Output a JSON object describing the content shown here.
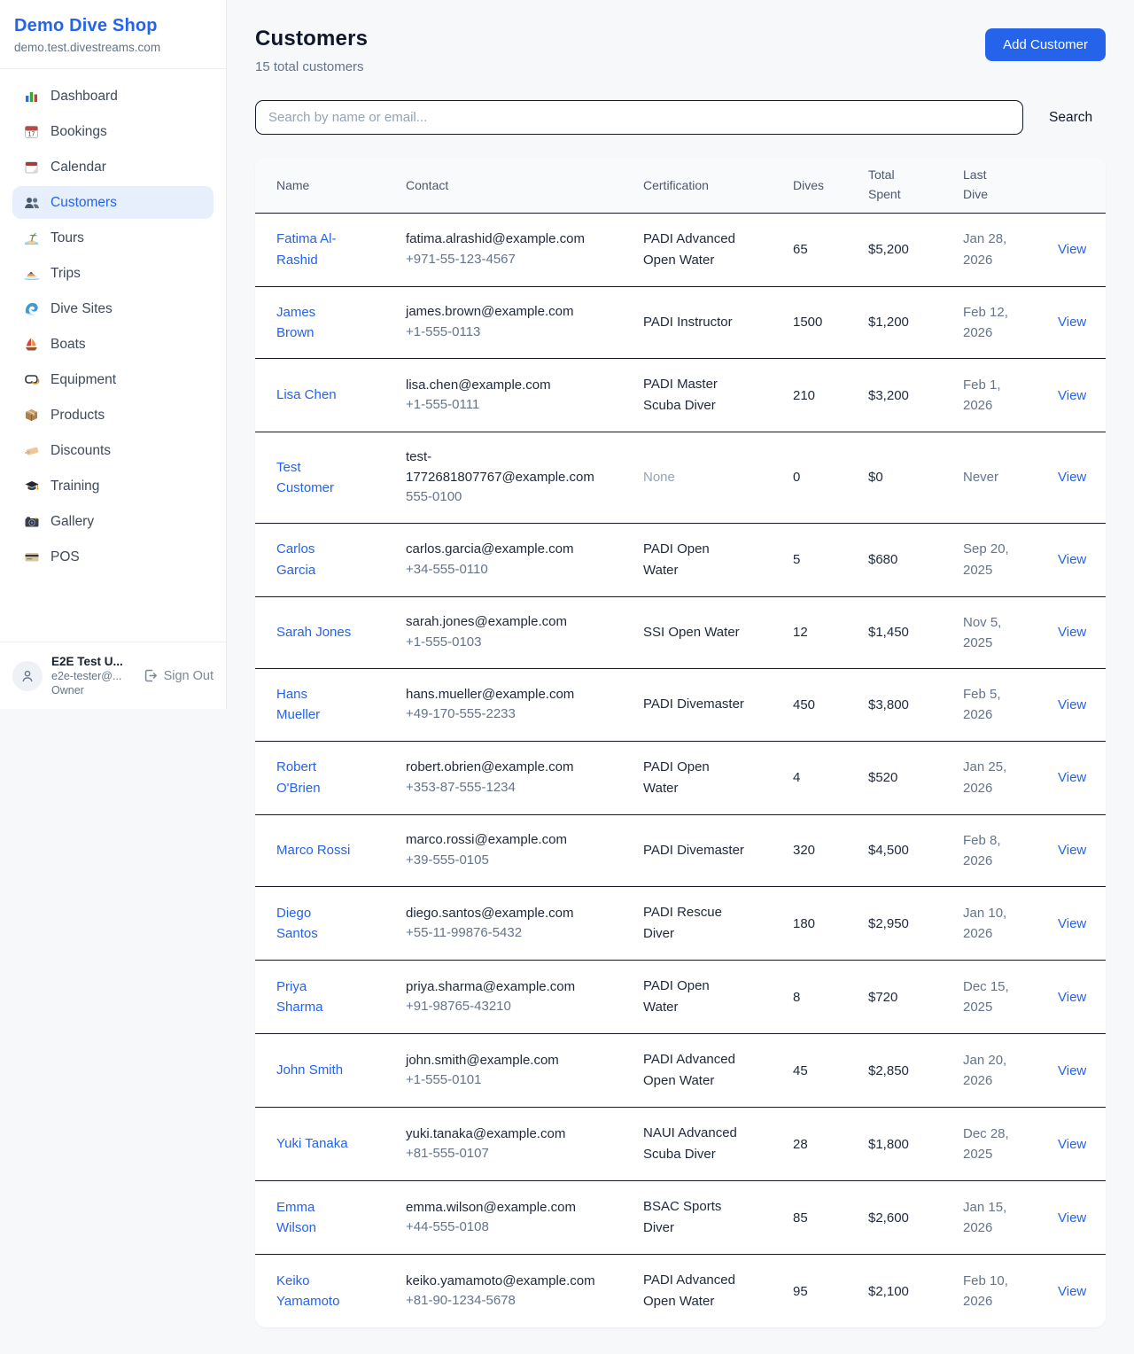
{
  "sidebar": {
    "brand": "Demo Dive Shop",
    "domain": "demo.test.divestreams.com",
    "items": [
      {
        "label": "Dashboard",
        "icon": "bar-chart-icon",
        "active": false
      },
      {
        "label": "Bookings",
        "icon": "calendar-date-icon",
        "active": false
      },
      {
        "label": "Calendar",
        "icon": "tear-off-calendar-icon",
        "active": false
      },
      {
        "label": "Customers",
        "icon": "people-icon",
        "active": true
      },
      {
        "label": "Tours",
        "icon": "desert-island-icon",
        "active": false
      },
      {
        "label": "Trips",
        "icon": "speedboat-icon",
        "active": false
      },
      {
        "label": "Dive Sites",
        "icon": "wave-icon",
        "active": false
      },
      {
        "label": "Boats",
        "icon": "sailboat-icon",
        "active": false
      },
      {
        "label": "Equipment",
        "icon": "diving-mask-icon",
        "active": false
      },
      {
        "label": "Products",
        "icon": "package-icon",
        "active": false
      },
      {
        "label": "Discounts",
        "icon": "tag-icon",
        "active": false
      },
      {
        "label": "Training",
        "icon": "graduation-cap-icon",
        "active": false
      },
      {
        "label": "Gallery",
        "icon": "camera-icon",
        "active": false
      },
      {
        "label": "POS",
        "icon": "credit-card-icon",
        "active": false
      }
    ],
    "user": {
      "name": "E2E Test U...",
      "email": "e2e-tester@...",
      "role": "Owner",
      "signout_label": "Sign Out"
    }
  },
  "header": {
    "title": "Customers",
    "subtitle": "15 total customers",
    "add_button": "Add Customer"
  },
  "search": {
    "placeholder": "Search by name or email...",
    "button": "Search"
  },
  "table": {
    "columns": [
      "Name",
      "Contact",
      "Certification",
      "Dives",
      "Total Spent",
      "Last Dive",
      ""
    ],
    "rows": [
      {
        "name": "Fatima Al-Rashid",
        "email": "fatima.alrashid@example.com",
        "phone": "+971-55-123-4567",
        "certification": "PADI Advanced Open Water",
        "dives": "65",
        "total_spent": "$5,200",
        "last_dive": "Jan 28, 2026",
        "action": "View"
      },
      {
        "name": "James Brown",
        "email": "james.brown@example.com",
        "phone": "+1-555-0113",
        "certification": "PADI Instructor",
        "dives": "1500",
        "total_spent": "$1,200",
        "last_dive": "Feb 12, 2026",
        "action": "View"
      },
      {
        "name": "Lisa Chen",
        "email": "lisa.chen@example.com",
        "phone": "+1-555-0111",
        "certification": "PADI Master Scuba Diver",
        "dives": "210",
        "total_spent": "$3,200",
        "last_dive": "Feb 1, 2026",
        "action": "View"
      },
      {
        "name": "Test Customer",
        "email": "test-1772681807767@example.com",
        "phone": "555-0100",
        "certification": "None",
        "dives": "0",
        "total_spent": "$0",
        "last_dive": "Never",
        "action": "View"
      },
      {
        "name": "Carlos Garcia",
        "email": "carlos.garcia@example.com",
        "phone": "+34-555-0110",
        "certification": "PADI Open Water",
        "dives": "5",
        "total_spent": "$680",
        "last_dive": "Sep 20, 2025",
        "action": "View"
      },
      {
        "name": "Sarah Jones",
        "email": "sarah.jones@example.com",
        "phone": "+1-555-0103",
        "certification": "SSI Open Water",
        "dives": "12",
        "total_spent": "$1,450",
        "last_dive": "Nov 5, 2025",
        "action": "View"
      },
      {
        "name": "Hans Mueller",
        "email": "hans.mueller@example.com",
        "phone": "+49-170-555-2233",
        "certification": "PADI Divemaster",
        "dives": "450",
        "total_spent": "$3,800",
        "last_dive": "Feb 5, 2026",
        "action": "View"
      },
      {
        "name": "Robert O'Brien",
        "email": "robert.obrien@example.com",
        "phone": "+353-87-555-1234",
        "certification": "PADI Open Water",
        "dives": "4",
        "total_spent": "$520",
        "last_dive": "Jan 25, 2026",
        "action": "View"
      },
      {
        "name": "Marco Rossi",
        "email": "marco.rossi@example.com",
        "phone": "+39-555-0105",
        "certification": "PADI Divemaster",
        "dives": "320",
        "total_spent": "$4,500",
        "last_dive": "Feb 8, 2026",
        "action": "View"
      },
      {
        "name": "Diego Santos",
        "email": "diego.santos@example.com",
        "phone": "+55-11-99876-5432",
        "certification": "PADI Rescue Diver",
        "dives": "180",
        "total_spent": "$2,950",
        "last_dive": "Jan 10, 2026",
        "action": "View"
      },
      {
        "name": "Priya Sharma",
        "email": "priya.sharma@example.com",
        "phone": "+91-98765-43210",
        "certification": "PADI Open Water",
        "dives": "8",
        "total_spent": "$720",
        "last_dive": "Dec 15, 2025",
        "action": "View"
      },
      {
        "name": "John Smith",
        "email": "john.smith@example.com",
        "phone": "+1-555-0101",
        "certification": "PADI Advanced Open Water",
        "dives": "45",
        "total_spent": "$2,850",
        "last_dive": "Jan 20, 2026",
        "action": "View"
      },
      {
        "name": "Yuki Tanaka",
        "email": "yuki.tanaka@example.com",
        "phone": "+81-555-0107",
        "certification": "NAUI Advanced Scuba Diver",
        "dives": "28",
        "total_spent": "$1,800",
        "last_dive": "Dec 28, 2025",
        "action": "View"
      },
      {
        "name": "Emma Wilson",
        "email": "emma.wilson@example.com",
        "phone": "+44-555-0108",
        "certification": "BSAC Sports Diver",
        "dives": "85",
        "total_spent": "$2,600",
        "last_dive": "Jan 15, 2026",
        "action": "View"
      },
      {
        "name": "Keiko Yamamoto",
        "email": "keiko.yamamoto@example.com",
        "phone": "+81-90-1234-5678",
        "certification": "PADI Advanced Open Water",
        "dives": "95",
        "total_spent": "$2,100",
        "last_dive": "Feb 10, 2026",
        "action": "View"
      }
    ]
  },
  "colors": {
    "accent": "#2563eb",
    "page_background": "#f7f8fa",
    "row_border": "#151a26",
    "muted_text": "#64748b"
  }
}
